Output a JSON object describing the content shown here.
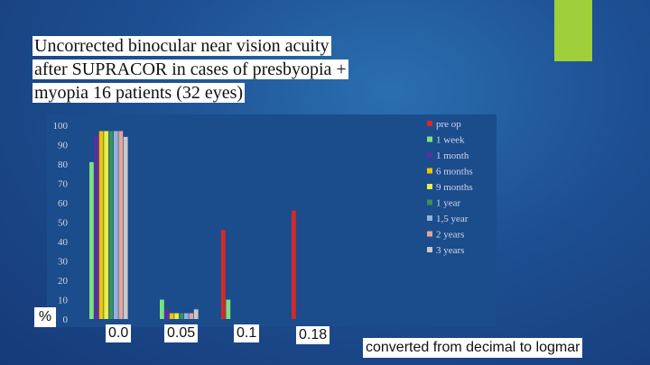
{
  "slide": {
    "title_lines": [
      "Uncorrected binocular near vision acuity",
      "after SUPRACOR in cases of presbyopia +",
      "myopia 16 patients (32 eyes)"
    ],
    "footnote": "converted from decimal to logmar",
    "accent_color": "#9fcf3a"
  },
  "chart_data": {
    "type": "bar",
    "ylabel": "%",
    "ylim": [
      0,
      100
    ],
    "yticks": [
      0,
      10,
      20,
      30,
      40,
      50,
      60,
      70,
      80,
      90,
      100
    ],
    "categories": [
      "0.0",
      "0.05",
      "0.1",
      "0.18"
    ],
    "legend_position": "right",
    "series": [
      {
        "name": "pre op",
        "color": "#d62828",
        "values": [
          0,
          0,
          46,
          56
        ]
      },
      {
        "name": "1 week",
        "color": "#7ee081",
        "values": [
          81,
          10,
          10,
          0
        ]
      },
      {
        "name": "1 month",
        "color": "#5b2fa0",
        "values": [
          95,
          5,
          0,
          0
        ]
      },
      {
        "name": "6 months",
        "color": "#f2c200",
        "values": [
          97,
          3,
          0,
          0
        ]
      },
      {
        "name": "9 months",
        "color": "#e6f04a",
        "values": [
          97,
          3,
          0,
          0
        ]
      },
      {
        "name": "1 year",
        "color": "#3f8f5a",
        "values": [
          97,
          3,
          0,
          0
        ]
      },
      {
        "name": "1,5 year",
        "color": "#8fb4e0",
        "values": [
          97,
          3,
          0,
          0
        ]
      },
      {
        "name": "2 years",
        "color": "#e7a39a",
        "values": [
          97,
          3,
          0,
          0
        ]
      },
      {
        "name": "3 years",
        "color": "#c9c9c9",
        "values": [
          94,
          5,
          0,
          0
        ]
      }
    ]
  }
}
